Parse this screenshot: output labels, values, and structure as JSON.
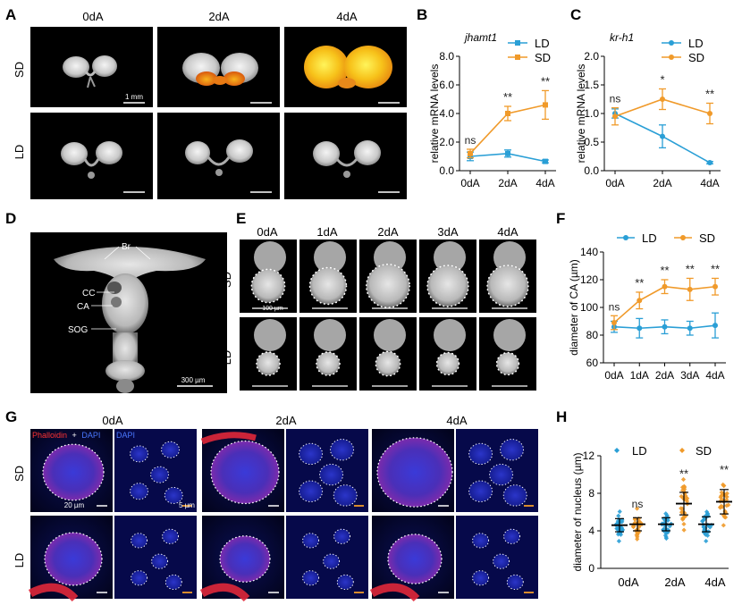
{
  "panel_letters": {
    "A": "A",
    "B": "B",
    "C": "C",
    "D": "D",
    "E": "E",
    "F": "F",
    "G": "G",
    "H": "H"
  },
  "panelA": {
    "cols": [
      "0dA",
      "2dA",
      "4dA"
    ],
    "rows": [
      "SD",
      "LD"
    ],
    "scale_label": "1 mm"
  },
  "panelD": {
    "labels": [
      "Br",
      "CC",
      "CA",
      "SOG"
    ],
    "scale_label": "300 µm"
  },
  "panelE": {
    "cols": [
      "0dA",
      "1dA",
      "2dA",
      "3dA",
      "4dA"
    ],
    "rows": [
      "SD",
      "LD"
    ],
    "scale_label": "100 µm"
  },
  "panelG": {
    "cols": [
      "0dA",
      "2dA",
      "4dA"
    ],
    "rows": [
      "SD",
      "LD"
    ],
    "stain_phalloidin": "Phalloidin",
    "stain_plus": "+",
    "stain_dapi": "DAPI",
    "dapi_label": "DAPI",
    "scale_left": "20 µm",
    "scale_right": "5 µm"
  },
  "colors": {
    "LD": "#2a9fd6",
    "SD": "#f09a2a",
    "asterisk": "#222222"
  },
  "chart_data": [
    {
      "id": "B",
      "type": "line",
      "title": "jhamt1",
      "ylabel": "relative mRNA levels",
      "categories": [
        "0dA",
        "2dA",
        "4dA"
      ],
      "ylim": [
        0,
        8
      ],
      "yticks": [
        "0.0",
        "2.0",
        "4.0",
        "6.0",
        "8.0"
      ],
      "series": [
        {
          "name": "LD",
          "values": [
            1.0,
            1.2,
            0.65
          ],
          "err": [
            0.3,
            0.25,
            0.1
          ]
        },
        {
          "name": "SD",
          "values": [
            1.2,
            4.0,
            4.6
          ],
          "err": [
            0.3,
            0.5,
            1.0
          ]
        }
      ],
      "annotations": [
        "ns",
        "**",
        "**"
      ]
    },
    {
      "id": "C",
      "type": "line",
      "title": "kr-h1",
      "ylabel": "relative mRNA levels",
      "categories": [
        "0dA",
        "2dA",
        "4dA"
      ],
      "ylim": [
        0,
        2
      ],
      "yticks": [
        "0.0",
        "0.5",
        "1.0",
        "1.5",
        "2.0"
      ],
      "series": [
        {
          "name": "LD",
          "values": [
            1.0,
            0.6,
            0.14
          ],
          "err": [
            0.08,
            0.2,
            0.02
          ]
        },
        {
          "name": "SD",
          "values": [
            0.95,
            1.25,
            1.0
          ],
          "err": [
            0.15,
            0.18,
            0.18
          ]
        }
      ],
      "annotations": [
        "ns",
        "*",
        "**"
      ]
    },
    {
      "id": "F",
      "type": "line",
      "title": "",
      "ylabel": "diameter of CA (µm)",
      "categories": [
        "0dA",
        "1dA",
        "2dA",
        "3dA",
        "4dA"
      ],
      "ylim": [
        60,
        140
      ],
      "yticks": [
        "60",
        "80",
        "100",
        "120",
        "140"
      ],
      "series": [
        {
          "name": "LD",
          "values": [
            86,
            85,
            86,
            85,
            87
          ],
          "err": [
            4,
            7,
            5,
            5,
            9
          ]
        },
        {
          "name": "SD",
          "values": [
            89,
            105,
            115,
            113,
            115
          ],
          "err": [
            5,
            6,
            5,
            8,
            6
          ]
        }
      ],
      "annotations": [
        "ns",
        "**",
        "**",
        "**",
        "**"
      ]
    },
    {
      "id": "H",
      "type": "scatter",
      "title": "",
      "ylabel": "diameter of nucleus (µm)",
      "categories": [
        "0dA",
        "2dA",
        "4dA"
      ],
      "ylim": [
        0,
        12
      ],
      "yticks": [
        "0",
        "4",
        "8",
        "12"
      ],
      "series": [
        {
          "name": "LD",
          "means": [
            4.6,
            4.7,
            4.7
          ],
          "sd": [
            0.7,
            0.7,
            0.8
          ]
        },
        {
          "name": "SD",
          "means": [
            4.7,
            6.9,
            7.1
          ],
          "sd": [
            0.7,
            1.2,
            1.3
          ]
        }
      ],
      "annotations": [
        "ns",
        "**",
        "**"
      ]
    }
  ]
}
